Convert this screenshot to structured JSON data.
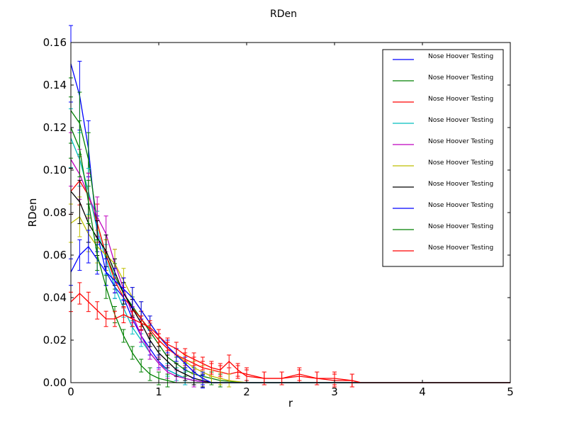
{
  "colors": {
    "series": [
      "#0000ff",
      "#008000",
      "#ff0000",
      "#00bfbf",
      "#bf00bf",
      "#bfbf00",
      "#000000",
      "#0000ff",
      "#008000",
      "#ff0000"
    ]
  },
  "chart_data": {
    "type": "line",
    "title": "RDen",
    "xlabel": "r",
    "ylabel": "RDen",
    "xlim": [
      0,
      5
    ],
    "ylim": [
      0,
      0.16
    ],
    "xticks": [
      "0",
      "1",
      "2",
      "3",
      "4",
      "5"
    ],
    "yticks": [
      "0.00",
      "0.02",
      "0.04",
      "0.06",
      "0.08",
      "0.10",
      "0.12",
      "0.14",
      "0.16"
    ],
    "grid": false,
    "legend_position": "upper-right",
    "error_bars": true,
    "series": [
      {
        "name": "Nose Hoover Testing",
        "x": [
          0,
          0.1,
          0.2,
          0.3,
          0.4,
          0.5,
          0.6,
          0.7,
          0.8,
          0.9,
          1.0,
          1.1,
          1.2,
          1.3,
          1.4,
          1.5,
          1.6,
          1.7,
          2.0,
          3.0,
          4.0,
          5.0
        ],
        "y": [
          0.15,
          0.135,
          0.11,
          0.07,
          0.052,
          0.045,
          0.04,
          0.03,
          0.022,
          0.016,
          0.01,
          0.006,
          0.004,
          0.002,
          0.001,
          0.0005,
          0,
          0,
          0,
          0,
          0,
          0
        ]
      },
      {
        "name": "Nose Hoover Testing",
        "x": [
          0,
          0.1,
          0.2,
          0.3,
          0.4,
          0.5,
          0.6,
          0.7,
          0.8,
          0.9,
          1.0,
          1.1,
          1.2,
          1.3,
          1.4,
          1.5,
          1.6,
          1.7,
          2.0,
          3.0,
          4.0,
          5.0
        ],
        "y": [
          0.128,
          0.122,
          0.105,
          0.075,
          0.06,
          0.05,
          0.042,
          0.036,
          0.03,
          0.024,
          0.018,
          0.012,
          0.009,
          0.006,
          0.004,
          0.003,
          0.002,
          0.001,
          0,
          0,
          0,
          0
        ]
      },
      {
        "name": "Nose Hoover Testing",
        "x": [
          0,
          0.1,
          0.2,
          0.3,
          0.4,
          0.5,
          0.6,
          0.7,
          0.8,
          0.9,
          1.0,
          1.1,
          1.2,
          1.3,
          1.4,
          1.5,
          1.6,
          1.7,
          1.8,
          1.9,
          2.0,
          2.2,
          2.4,
          2.6,
          2.8,
          3.0,
          3.2,
          3.3,
          4.0,
          5.0
        ],
        "y": [
          0.09,
          0.095,
          0.088,
          0.075,
          0.06,
          0.048,
          0.04,
          0.035,
          0.03,
          0.025,
          0.02,
          0.016,
          0.013,
          0.011,
          0.009,
          0.007,
          0.006,
          0.005,
          0.004,
          0.005,
          0.004,
          0.002,
          0.002,
          0.003,
          0.002,
          0.001,
          0.001,
          0,
          0,
          0
        ]
      },
      {
        "name": "Nose Hoover Testing",
        "x": [
          0,
          0.1,
          0.2,
          0.3,
          0.4,
          0.5,
          0.6,
          0.7,
          0.8,
          0.9,
          1.0,
          1.1,
          1.2,
          1.3,
          1.4,
          1.6,
          2.0,
          3.0,
          4.0,
          5.0
        ],
        "y": [
          0.115,
          0.105,
          0.09,
          0.072,
          0.058,
          0.045,
          0.035,
          0.026,
          0.02,
          0.014,
          0.009,
          0.006,
          0.004,
          0.002,
          0.001,
          0,
          0,
          0,
          0,
          0
        ]
      },
      {
        "name": "Nose Hoover Testing",
        "x": [
          0,
          0.1,
          0.2,
          0.3,
          0.4,
          0.5,
          0.6,
          0.7,
          0.8,
          0.9,
          1.0,
          1.1,
          1.2,
          1.4,
          1.6,
          2.0,
          3.0,
          4.0,
          5.0
        ],
        "y": [
          0.105,
          0.098,
          0.088,
          0.078,
          0.07,
          0.056,
          0.044,
          0.032,
          0.022,
          0.014,
          0.009,
          0.005,
          0.003,
          0.001,
          0,
          0,
          0,
          0,
          0
        ]
      },
      {
        "name": "Nose Hoover Testing",
        "x": [
          0,
          0.1,
          0.2,
          0.3,
          0.4,
          0.5,
          0.6,
          0.7,
          0.8,
          0.9,
          1.0,
          1.1,
          1.2,
          1.3,
          1.4,
          1.5,
          1.6,
          1.7,
          1.8,
          2.0,
          3.0,
          4.0,
          5.0
        ],
        "y": [
          0.075,
          0.078,
          0.07,
          0.064,
          0.06,
          0.056,
          0.048,
          0.04,
          0.034,
          0.028,
          0.022,
          0.017,
          0.013,
          0.01,
          0.007,
          0.005,
          0.003,
          0.002,
          0.001,
          0,
          0,
          0,
          0
        ]
      },
      {
        "name": "Nose Hoover Testing",
        "x": [
          0,
          0.1,
          0.2,
          0.3,
          0.4,
          0.5,
          0.6,
          0.7,
          0.8,
          0.9,
          1.0,
          1.1,
          1.2,
          1.3,
          1.4,
          1.5,
          1.6,
          2.0,
          3.0,
          4.0,
          5.0
        ],
        "y": [
          0.09,
          0.085,
          0.075,
          0.068,
          0.062,
          0.052,
          0.042,
          0.035,
          0.028,
          0.02,
          0.014,
          0.01,
          0.006,
          0.004,
          0.002,
          0.001,
          0,
          0,
          0,
          0,
          0
        ]
      },
      {
        "name": "Nose Hoover Testing",
        "x": [
          0,
          0.1,
          0.2,
          0.3,
          0.4,
          0.5,
          0.6,
          0.7,
          0.8,
          0.9,
          1.0,
          1.1,
          1.2,
          1.3,
          1.4,
          1.5,
          1.6,
          2.0,
          3.0,
          4.0,
          5.0
        ],
        "y": [
          0.052,
          0.06,
          0.064,
          0.058,
          0.052,
          0.048,
          0.044,
          0.04,
          0.034,
          0.028,
          0.022,
          0.017,
          0.013,
          0.009,
          0.005,
          0.002,
          0,
          0,
          0,
          0,
          0
        ]
      },
      {
        "name": "Nose Hoover Testing",
        "x": [
          0,
          0.1,
          0.2,
          0.3,
          0.4,
          0.5,
          0.6,
          0.7,
          0.8,
          0.9,
          1.0,
          1.1,
          1.2,
          1.4,
          1.6,
          2.0,
          3.0,
          4.0,
          5.0
        ],
        "y": [
          0.12,
          0.11,
          0.085,
          0.06,
          0.045,
          0.032,
          0.022,
          0.014,
          0.008,
          0.004,
          0.002,
          0.001,
          0,
          0,
          0,
          0,
          0,
          0,
          0
        ]
      },
      {
        "name": "Nose Hoover Testing",
        "x": [
          0,
          0.1,
          0.2,
          0.3,
          0.4,
          0.5,
          0.6,
          0.7,
          0.8,
          0.9,
          1.0,
          1.1,
          1.2,
          1.3,
          1.4,
          1.5,
          1.6,
          1.7,
          1.8,
          1.9,
          2.0,
          2.2,
          2.4,
          2.6,
          2.8,
          3.0,
          3.2,
          3.3,
          4.0,
          5.0
        ],
        "y": [
          0.038,
          0.042,
          0.038,
          0.034,
          0.03,
          0.03,
          0.032,
          0.03,
          0.028,
          0.026,
          0.022,
          0.018,
          0.016,
          0.013,
          0.011,
          0.009,
          0.007,
          0.006,
          0.01,
          0.006,
          0.003,
          0.002,
          0.002,
          0.004,
          0.002,
          0.002,
          0.001,
          0,
          0,
          0
        ]
      }
    ]
  }
}
